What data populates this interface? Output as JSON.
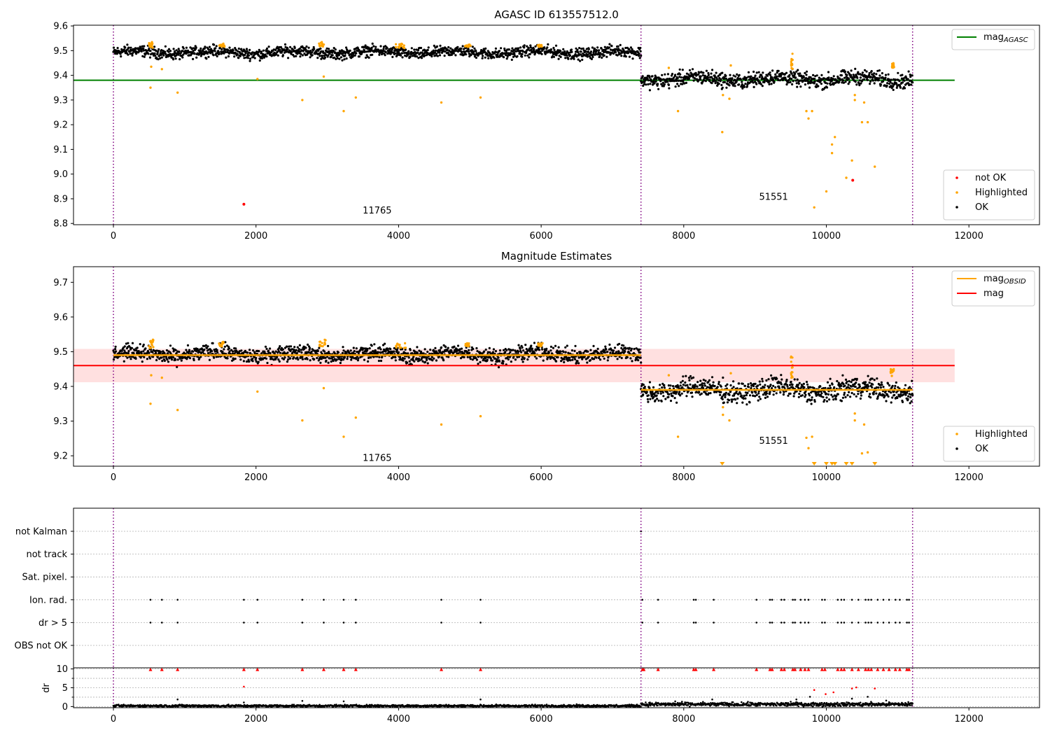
{
  "colors": {
    "ok": "#000000",
    "highlighted": "#ffa500",
    "not_ok": "#ff0000",
    "agasc_line": "#008000",
    "mag_line": "#ff0000",
    "mag_band": "#ffcccc",
    "obsid_line": "#ffa500",
    "obs_boundary": "#800080",
    "grid": "#b0b0b0"
  },
  "chart_data": [
    {
      "id": "agasc",
      "type": "scatter",
      "title": "AGASC ID 613557512.0",
      "xlabel": "",
      "ylabel": "",
      "xlim": [
        -560,
        12990
      ],
      "ylim": [
        8.795,
        9.603
      ],
      "xticks": [
        0,
        2000,
        4000,
        6000,
        8000,
        10000,
        12000
      ],
      "yticks": [
        8.8,
        8.9,
        9.0,
        9.1,
        9.2,
        9.3,
        9.4,
        9.5,
        9.6
      ],
      "ytick_labels": [
        "8.8",
        "8.9",
        "9.0",
        "9.1",
        "9.2",
        "9.3",
        "9.4",
        "9.5",
        "9.6"
      ],
      "obs_boundaries": [
        0,
        7400,
        11210
      ],
      "observations": [
        {
          "label": "11765",
          "x": 3700,
          "y": 8.84,
          "x_start": 0,
          "x_end": 7400,
          "ok_mean": 9.493,
          "ok_spread": 0.02
        },
        {
          "label": "51551",
          "x": 9260,
          "y": 8.895,
          "x_start": 7400,
          "x_end": 11210,
          "ok_mean": 9.385,
          "ok_spread": 0.027
        }
      ],
      "agasc_mag": 9.38,
      "agasc_line_xrange": [
        -560,
        11800
      ],
      "highlighted": [
        [
          520,
          9.35
        ],
        [
          530,
          9.435
        ],
        [
          680,
          9.425
        ],
        [
          900,
          9.33
        ],
        [
          2020,
          9.385
        ],
        [
          2650,
          9.3
        ],
        [
          2950,
          9.395
        ],
        [
          3230,
          9.255
        ],
        [
          3400,
          9.31
        ],
        [
          4600,
          9.29
        ],
        [
          5150,
          9.31
        ],
        [
          7920,
          9.255
        ],
        [
          8540,
          9.17
        ],
        [
          8550,
          9.32
        ],
        [
          8640,
          9.305
        ],
        [
          9800,
          9.255
        ],
        [
          9750,
          9.225
        ],
        [
          9720,
          9.255
        ],
        [
          10080,
          9.12
        ],
        [
          10080,
          9.085
        ],
        [
          10120,
          9.15
        ],
        [
          10000,
          8.93
        ],
        [
          9830,
          8.865
        ],
        [
          10280,
          8.985
        ],
        [
          10360,
          9.055
        ],
        [
          10400,
          9.3
        ],
        [
          10400,
          9.32
        ],
        [
          10500,
          9.21
        ],
        [
          10580,
          9.21
        ],
        [
          10530,
          9.29
        ],
        [
          10680,
          9.03
        ],
        [
          7790,
          9.43
        ],
        [
          8660,
          9.44
        ]
      ],
      "highlighted_band": [
        {
          "x_start": 500,
          "x_end": 560,
          "y_low": 9.51,
          "y_high": 9.535
        },
        {
          "x_start": 1480,
          "x_end": 1560,
          "y_low": 9.515,
          "y_high": 9.53
        },
        {
          "x_start": 2880,
          "x_end": 2980,
          "y_low": 9.515,
          "y_high": 9.535
        },
        {
          "x_start": 3960,
          "x_end": 4100,
          "y_low": 9.51,
          "y_high": 9.53
        },
        {
          "x_start": 4930,
          "x_end": 5010,
          "y_low": 9.515,
          "y_high": 9.525
        },
        {
          "x_start": 5950,
          "x_end": 6020,
          "y_low": 9.515,
          "y_high": 9.525
        },
        {
          "x_start": 9500,
          "x_end": 9530,
          "y_low": 9.42,
          "y_high": 9.49
        },
        {
          "x_start": 10900,
          "x_end": 10950,
          "y_low": 9.43,
          "y_high": 9.45
        }
      ],
      "not_ok": [
        [
          1830,
          8.878
        ],
        [
          10370,
          8.975
        ]
      ],
      "legends": [
        {
          "position": "upper-right",
          "entries": [
            {
              "label": "mag",
              "subscript": "AGASC",
              "kind": "line",
              "color_key": "agasc_line"
            }
          ]
        },
        {
          "position": "lower-right",
          "entries": [
            {
              "label": "not OK",
              "kind": "point",
              "color_key": "not_ok"
            },
            {
              "label": "Highlighted",
              "kind": "point",
              "color_key": "highlighted"
            },
            {
              "label": "OK",
              "kind": "point",
              "color_key": "ok"
            }
          ]
        }
      ]
    },
    {
      "id": "estimates",
      "type": "scatter",
      "title": "Magnitude Estimates",
      "xlabel": "",
      "ylabel": "",
      "xlim": [
        -560,
        12990
      ],
      "ylim": [
        9.17,
        9.745
      ],
      "xticks": [
        0,
        2000,
        4000,
        6000,
        8000,
        10000,
        12000
      ],
      "yticks": [
        9.2,
        9.3,
        9.4,
        9.5,
        9.6,
        9.7
      ],
      "ytick_labels": [
        "9.2",
        "9.3",
        "9.4",
        "9.5",
        "9.6",
        "9.7"
      ],
      "obs_boundaries": [
        0,
        7400,
        11210
      ],
      "observations": [
        {
          "label": "11765",
          "x": 3700,
          "y": 9.185,
          "x_start": 0,
          "x_end": 7400,
          "ok_mean": 9.493,
          "ok_spread": 0.02,
          "mag_obsid": 9.49
        },
        {
          "label": "51551",
          "x": 9260,
          "y": 9.235,
          "x_start": 7400,
          "x_end": 11210,
          "ok_mean": 9.39,
          "ok_spread": 0.027,
          "mag_obsid": 9.39
        }
      ],
      "mag": 9.46,
      "mag_band": [
        9.412,
        9.508
      ],
      "mag_line_xrange": [
        -560,
        11800
      ],
      "highlighted": [
        [
          520,
          9.35
        ],
        [
          530,
          9.432
        ],
        [
          680,
          9.425
        ],
        [
          900,
          9.332
        ],
        [
          2020,
          9.385
        ],
        [
          2650,
          9.302
        ],
        [
          2950,
          9.395
        ],
        [
          3230,
          9.255
        ],
        [
          3400,
          9.31
        ],
        [
          4600,
          9.29
        ],
        [
          5150,
          9.314
        ],
        [
          7920,
          9.255
        ],
        [
          8550,
          9.318
        ],
        [
          8640,
          9.302
        ],
        [
          8550,
          9.34
        ],
        [
          9720,
          9.252
        ],
        [
          9800,
          9.255
        ],
        [
          9750,
          9.222
        ],
        [
          10400,
          9.302
        ],
        [
          10400,
          9.322
        ],
        [
          10530,
          9.29
        ],
        [
          10500,
          9.207
        ],
        [
          10580,
          9.21
        ],
        [
          7790,
          9.432
        ],
        [
          8660,
          9.438
        ]
      ],
      "highlighted_clipped": [
        8540,
        9830,
        10000,
        10080,
        10120,
        10280,
        10360,
        10680
      ],
      "highlighted_band": [
        {
          "x_start": 500,
          "x_end": 560,
          "y_low": 9.51,
          "y_high": 9.535
        },
        {
          "x_start": 1480,
          "x_end": 1560,
          "y_low": 9.515,
          "y_high": 9.53
        },
        {
          "x_start": 2880,
          "x_end": 2980,
          "y_low": 9.515,
          "y_high": 9.535
        },
        {
          "x_start": 3960,
          "x_end": 4100,
          "y_low": 9.51,
          "y_high": 9.525
        },
        {
          "x_start": 4930,
          "x_end": 5010,
          "y_low": 9.515,
          "y_high": 9.525
        },
        {
          "x_start": 5950,
          "x_end": 6020,
          "y_low": 9.515,
          "y_high": 9.525
        },
        {
          "x_start": 9500,
          "x_end": 9530,
          "y_low": 9.42,
          "y_high": 9.49
        },
        {
          "x_start": 10900,
          "x_end": 10950,
          "y_low": 9.43,
          "y_high": 9.45
        }
      ],
      "legends": [
        {
          "position": "upper-right",
          "entries": [
            {
              "label": "mag",
              "subscript": "OBSID",
              "kind": "line",
              "color_key": "obsid_line"
            },
            {
              "label": "mag",
              "kind": "line",
              "color_key": "mag_line"
            }
          ]
        },
        {
          "position": "lower-right",
          "entries": [
            {
              "label": "Highlighted",
              "kind": "point",
              "color_key": "highlighted"
            },
            {
              "label": "OK",
              "kind": "point",
              "color_key": "ok"
            }
          ]
        }
      ]
    },
    {
      "id": "flags",
      "type": "scatter",
      "title": "",
      "xlabel": "",
      "ylabel": "",
      "xlim": [
        -560,
        12990
      ],
      "categories": [
        "not Kalman",
        "not track",
        "Sat. pixel.",
        "Ion. rad.",
        "dr > 5",
        "OBS not OK"
      ],
      "obs_boundaries": [
        0,
        7400,
        11210
      ],
      "flag_rows": {
        "not Kalman": [
          7400
        ],
        "not track": [],
        "Sat. pixel.": [],
        "Ion. rad.": [
          520,
          680,
          900,
          1830,
          2020,
          2650,
          2950,
          3230,
          3400,
          4600,
          5150,
          7420,
          7640,
          8140,
          8170,
          8420,
          9020,
          9210,
          9240,
          9370,
          9410,
          9530,
          9560,
          9640,
          9700,
          9750,
          9940,
          9980,
          10160,
          10210,
          10250,
          10360,
          10450,
          10550,
          10590,
          10630,
          10720,
          10800,
          10880,
          10970,
          11030,
          11130,
          11160
        ],
        "dr > 5": [
          520,
          680,
          900,
          1830,
          2020,
          2650,
          2950,
          3230,
          3400,
          4600,
          5150,
          7420,
          7640,
          8140,
          8170,
          8420,
          9020,
          9210,
          9240,
          9370,
          9410,
          9530,
          9560,
          9640,
          9700,
          9750,
          9940,
          9980,
          10160,
          10210,
          10250,
          10360,
          10450,
          10550,
          10590,
          10630,
          10720,
          10800,
          10880,
          10970,
          11030,
          11130,
          11160
        ],
        "OBS not OK": []
      }
    },
    {
      "id": "dr",
      "type": "scatter",
      "title": "",
      "xlabel": "",
      "ylabel": "dr",
      "xlim": [
        -560,
        12990
      ],
      "ylim": [
        -0.3,
        10.3
      ],
      "xticks": [
        0,
        2000,
        4000,
        6000,
        8000,
        10000,
        12000
      ],
      "yticks": [
        0,
        5,
        10
      ],
      "ytick_labels": [
        "0",
        "5",
        "10"
      ],
      "obs_boundaries": [
        0,
        7400,
        11210
      ],
      "observations": [
        {
          "x_start": 0,
          "x_end": 7400,
          "ok_mean": 0.2,
          "ok_spread": 0.15
        },
        {
          "x_start": 7400,
          "x_end": 11210,
          "ok_mean": 0.6,
          "ok_spread": 0.25
        }
      ],
      "clipped_at_10": [
        520,
        680,
        900,
        1830,
        2020,
        2650,
        2950,
        3230,
        3400,
        4600,
        5150,
        7420,
        7440,
        7640,
        8140,
        8170,
        8420,
        9020,
        9210,
        9240,
        9370,
        9410,
        9530,
        9560,
        9640,
        9700,
        9750,
        9940,
        9980,
        10160,
        10210,
        10250,
        10360,
        10450,
        10550,
        10590,
        10630,
        10720,
        10800,
        10880,
        10970,
        11030,
        11130,
        11160
      ],
      "red_points": [
        [
          1830,
          5.3
        ],
        [
          9830,
          4.4
        ],
        [
          9990,
          3.3
        ],
        [
          10100,
          3.8
        ],
        [
          10360,
          4.8
        ],
        [
          10420,
          5.1
        ],
        [
          10680,
          4.8
        ]
      ],
      "black_points": [
        [
          900,
          1.9
        ],
        [
          1830,
          1.1
        ],
        [
          2650,
          1.5
        ],
        [
          3230,
          1.4
        ],
        [
          5150,
          1.9
        ],
        [
          7880,
          1.4
        ],
        [
          8400,
          1.9
        ],
        [
          9500,
          1.3
        ],
        [
          9580,
          1.9
        ],
        [
          9770,
          2.6
        ],
        [
          10360,
          2.1
        ],
        [
          10580,
          2.6
        ],
        [
          10840,
          1.6
        ],
        [
          11150,
          1.2
        ]
      ]
    }
  ]
}
